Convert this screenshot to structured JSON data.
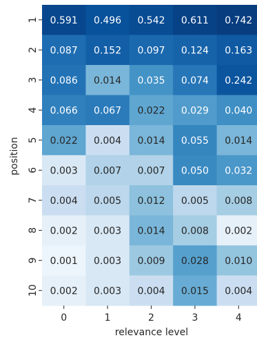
{
  "chart_data": {
    "type": "heatmap",
    "title": "",
    "xlabel": "relevance level",
    "ylabel": "position",
    "x_categories": [
      "0",
      "1",
      "2",
      "3",
      "4"
    ],
    "y_categories": [
      "1",
      "2",
      "3",
      "4",
      "5",
      "6",
      "7",
      "8",
      "9",
      "10"
    ],
    "colormap": "Blues",
    "colorbar": false,
    "grid": false,
    "values": [
      [
        0.591,
        0.496,
        0.542,
        0.611,
        0.742
      ],
      [
        0.087,
        0.152,
        0.097,
        0.124,
        0.163
      ],
      [
        0.086,
        0.014,
        0.035,
        0.074,
        0.242
      ],
      [
        0.066,
        0.067,
        0.022,
        0.029,
        0.04
      ],
      [
        0.022,
        0.004,
        0.014,
        0.055,
        0.014
      ],
      [
        0.003,
        0.007,
        0.007,
        0.05,
        0.032
      ],
      [
        0.004,
        0.005,
        0.012,
        0.005,
        0.008
      ],
      [
        0.002,
        0.003,
        0.014,
        0.008,
        0.002
      ],
      [
        0.001,
        0.003,
        0.009,
        0.028,
        0.01
      ],
      [
        0.002,
        0.003,
        0.004,
        0.015,
        0.004
      ]
    ]
  }
}
